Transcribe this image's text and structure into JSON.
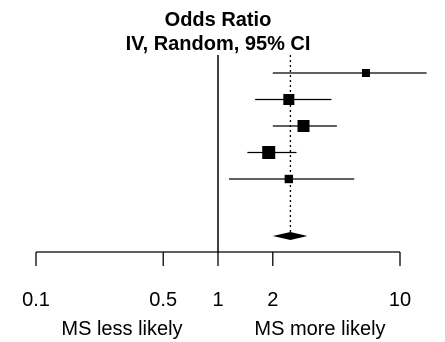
{
  "chart_data": {
    "type": "forest",
    "title": "Odds Ratio",
    "subtitle": "IV, Random, 95% CI",
    "x_scale": "log",
    "xlim": [
      0.1,
      10
    ],
    "x_ticks": [
      0.1,
      0.5,
      1,
      2,
      10
    ],
    "x_tick_labels": [
      "0.1",
      "0.5",
      "1",
      "2",
      "10"
    ],
    "null_value": 1,
    "direction_labels": {
      "left": "MS less likely",
      "right": "MS more likely"
    },
    "studies": [
      {
        "or": 6.5,
        "lower": 2.0,
        "upper": 14.0,
        "weight": 0.1
      },
      {
        "or": 2.45,
        "lower": 1.6,
        "upper": 4.2,
        "weight": 0.25
      },
      {
        "or": 2.95,
        "lower": 2.0,
        "upper": 4.5,
        "weight": 0.3
      },
      {
        "or": 1.9,
        "lower": 1.45,
        "upper": 2.7,
        "weight": 0.35
      },
      {
        "or": 2.45,
        "lower": 1.15,
        "upper": 5.6,
        "weight": 0.12
      }
    ],
    "pooled": {
      "or": 2.5,
      "lower": 2.0,
      "upper": 3.1
    }
  }
}
